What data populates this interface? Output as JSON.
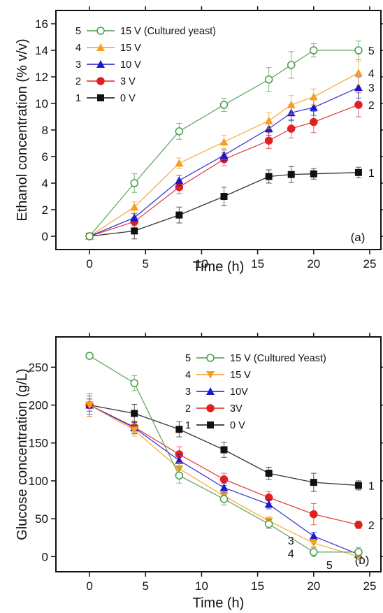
{
  "chart_data": [
    {
      "type": "line",
      "panel_label": "(a)",
      "xlabel": "Time (h)",
      "ylabel": "Ethanol concentration (% v/v)",
      "xlim": [
        -3,
        26
      ],
      "ylim": [
        -1,
        17
      ],
      "xticks": [
        0,
        5,
        10,
        15,
        20,
        25
      ],
      "yticks": [
        0,
        2,
        4,
        6,
        8,
        10,
        12,
        14,
        16
      ],
      "grid": false,
      "legend_position": "top-left",
      "series": [
        {
          "id": "5",
          "name": "15 V (Cultured yeast)",
          "color": "#4a9a4a",
          "marker": "circle-open",
          "end_label": "5",
          "x": [
            0,
            4,
            8,
            12,
            16,
            18,
            20,
            24
          ],
          "y": [
            0,
            4.0,
            7.9,
            9.9,
            11.8,
            12.9,
            14.0,
            14.0
          ],
          "err": [
            0.2,
            0.7,
            0.6,
            0.5,
            0.9,
            1.0,
            0.5,
            0.7
          ]
        },
        {
          "id": "4",
          "name": "15 V",
          "color": "#f5a020",
          "marker": "triangle-up",
          "end_label": "4",
          "x": [
            0,
            4,
            8,
            12,
            16,
            18,
            20,
            24
          ],
          "y": [
            0,
            2.2,
            5.5,
            7.1,
            8.7,
            9.9,
            10.5,
            12.3
          ],
          "err": [
            0.2,
            0.4,
            0.4,
            0.5,
            0.6,
            0.7,
            0.6,
            0.9
          ]
        },
        {
          "id": "3",
          "name": "10 V",
          "color": "#1a1acc",
          "marker": "triangle-up",
          "end_label": "3",
          "x": [
            0,
            4,
            8,
            12,
            16,
            18,
            20,
            24
          ],
          "y": [
            0,
            1.4,
            4.2,
            6.1,
            8.1,
            9.3,
            9.7,
            11.2
          ],
          "err": [
            0.2,
            0.3,
            0.4,
            0.4,
            0.5,
            0.6,
            0.6,
            0.8
          ]
        },
        {
          "id": "2",
          "name": "3 V",
          "color": "#e02020",
          "marker": "circle",
          "end_label": "2",
          "x": [
            0,
            4,
            8,
            12,
            16,
            18,
            20,
            24
          ],
          "y": [
            0,
            1.1,
            3.7,
            5.8,
            7.2,
            8.1,
            8.6,
            9.9
          ],
          "err": [
            0.2,
            0.3,
            0.5,
            0.5,
            0.6,
            0.7,
            0.8,
            0.9
          ]
        },
        {
          "id": "1",
          "name": "0 V",
          "color": "#111111",
          "marker": "square",
          "end_label": "1",
          "x": [
            0,
            4,
            8,
            12,
            16,
            18,
            20,
            24
          ],
          "y": [
            0,
            0.4,
            1.6,
            3.0,
            4.5,
            4.65,
            4.7,
            4.8
          ],
          "err": [
            0.2,
            0.6,
            0.6,
            0.7,
            0.5,
            0.6,
            0.4,
            0.4
          ]
        }
      ]
    },
    {
      "type": "line",
      "panel_label": "(b)",
      "xlabel": "Time (h)",
      "ylabel": "Glucose concentration (g/L)",
      "xlim": [
        -3,
        26
      ],
      "ylim": [
        -20,
        290
      ],
      "xticks": [
        0,
        5,
        10,
        15,
        20,
        25
      ],
      "yticks": [
        0,
        50,
        100,
        150,
        200,
        250
      ],
      "grid": false,
      "legend_position": "top-right",
      "series": [
        {
          "id": "5",
          "name": "15 V (Cultured Yeast)",
          "color": "#4a9a4a",
          "marker": "circle-open",
          "end_label": "5",
          "x": [
            0,
            4,
            8,
            12,
            16,
            20,
            24
          ],
          "y": [
            265,
            229,
            107,
            76,
            43,
            6,
            6
          ],
          "err": [
            4,
            10,
            10,
            8,
            6,
            6,
            6
          ]
        },
        {
          "id": "4",
          "name": "15 V",
          "color": "#f5a020",
          "marker": "triangle-down",
          "end_label": "4",
          "x": [
            0,
            4,
            8,
            12,
            16,
            20,
            24
          ],
          "y": [
            200,
            167,
            116,
            80,
            47,
            18,
            0
          ],
          "err": [
            15,
            8,
            8,
            6,
            6,
            5,
            4
          ]
        },
        {
          "id": "3",
          "name": "10V",
          "color": "#1a1acc",
          "marker": "triangle-up",
          "end_label": "3",
          "x": [
            0,
            4,
            8,
            12,
            16,
            20,
            24
          ],
          "y": [
            200,
            170,
            127,
            91,
            69,
            27,
            3
          ],
          "err": [
            12,
            8,
            8,
            6,
            6,
            5,
            4
          ]
        },
        {
          "id": "2",
          "name": "3V",
          "color": "#e02020",
          "marker": "circle",
          "end_label": "2",
          "x": [
            0,
            4,
            8,
            12,
            16,
            20,
            24
          ],
          "y": [
            200,
            171,
            135,
            102,
            78,
            56,
            42
          ],
          "err": [
            15,
            8,
            10,
            8,
            8,
            14,
            5
          ]
        },
        {
          "id": "1",
          "name": "0 V",
          "color": "#111111",
          "marker": "square",
          "end_label": "1",
          "x": [
            0,
            4,
            8,
            12,
            16,
            20,
            24
          ],
          "y": [
            200,
            189,
            168,
            141,
            110,
            98,
            94
          ],
          "err": [
            8,
            12,
            10,
            10,
            8,
            12,
            6
          ]
        }
      ]
    }
  ]
}
